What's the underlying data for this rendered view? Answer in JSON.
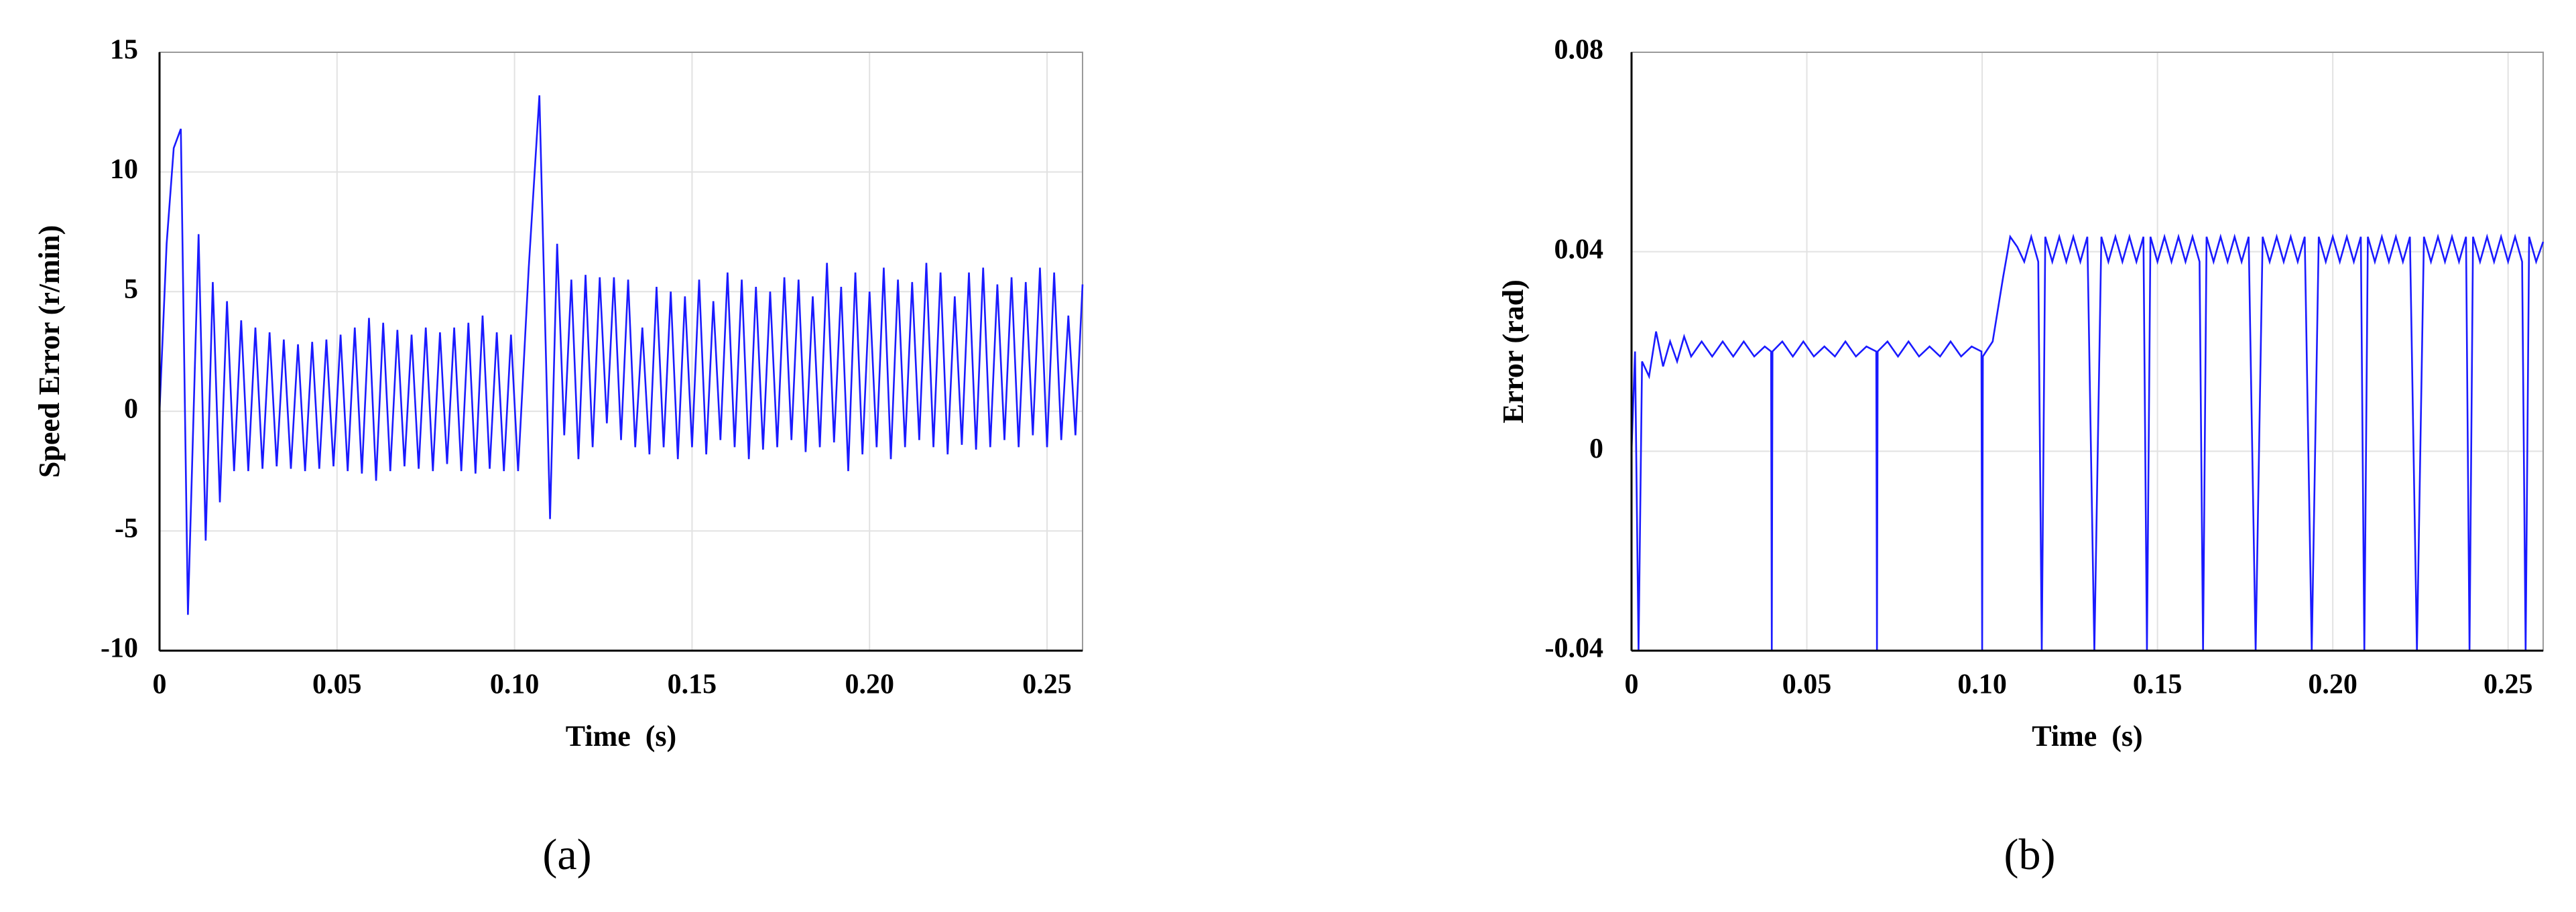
{
  "chart_data": [
    {
      "type": "line",
      "x_label": "Time  (s)",
      "y_label": "Speed Error (r/min)",
      "caption": "(a)",
      "xlim": [
        0,
        0.26
      ],
      "ylim": [
        -10,
        15
      ],
      "xticks": [
        0,
        0.05,
        {
          "value": 0.1,
          "label": "0.10"
        },
        0.15,
        {
          "value": 0.2,
          "label": "0.20"
        },
        0.25
      ],
      "yticks": [
        -10,
        -5,
        0,
        5,
        10,
        15
      ],
      "grid": true,
      "series": [
        {
          "name": "Speed Error",
          "color": "#1a1aff",
          "x": [
            0,
            0.002,
            0.004,
            0.006,
            0.008,
            0.011,
            0.013,
            0.015,
            0.017,
            0.019,
            0.021,
            0.023,
            0.025,
            0.027,
            0.029,
            0.031,
            0.033,
            0.035,
            0.037,
            0.039,
            0.041,
            0.043,
            0.045,
            0.047,
            0.049,
            0.051,
            0.053,
            0.055,
            0.057,
            0.059,
            0.061,
            0.063,
            0.065,
            0.067,
            0.069,
            0.071,
            0.073,
            0.075,
            0.077,
            0.079,
            0.081,
            0.083,
            0.085,
            0.087,
            0.089,
            0.091,
            0.093,
            0.095,
            0.097,
            0.099,
            0.101,
            0.104,
            0.107,
            0.11,
            0.112,
            0.114,
            0.116,
            0.118,
            0.12,
            0.122,
            0.124,
            0.126,
            0.128,
            0.13,
            0.132,
            0.134,
            0.136,
            0.138,
            0.14,
            0.142,
            0.144,
            0.146,
            0.148,
            0.15,
            0.152,
            0.154,
            0.156,
            0.158,
            0.16,
            0.162,
            0.164,
            0.166,
            0.168,
            0.17,
            0.172,
            0.174,
            0.176,
            0.178,
            0.18,
            0.182,
            0.184,
            0.186,
            0.188,
            0.19,
            0.192,
            0.194,
            0.196,
            0.198,
            0.2,
            0.202,
            0.204,
            0.206,
            0.208,
            0.21,
            0.212,
            0.214,
            0.216,
            0.218,
            0.22,
            0.222,
            0.224,
            0.226,
            0.228,
            0.23,
            0.232,
            0.234,
            0.236,
            0.238,
            0.24,
            0.242,
            0.244,
            0.246,
            0.248,
            0.25,
            0.252,
            0.254,
            0.256,
            0.258,
            0.26
          ],
          "values": [
            0,
            7,
            11,
            11.8,
            -8.5,
            7.4,
            -5.4,
            5.4,
            -3.8,
            4.6,
            -2.5,
            3.8,
            -2.5,
            3.5,
            -2.4,
            3.3,
            -2.3,
            3.0,
            -2.4,
            2.8,
            -2.5,
            2.9,
            -2.4,
            3.0,
            -2.3,
            3.2,
            -2.5,
            3.5,
            -2.6,
            3.9,
            -2.9,
            3.7,
            -2.5,
            3.4,
            -2.3,
            3.2,
            -2.4,
            3.5,
            -2.5,
            3.3,
            -2.2,
            3.5,
            -2.5,
            3.7,
            -2.6,
            4.0,
            -2.4,
            3.3,
            -2.5,
            3.2,
            -2.5,
            6,
            13.2,
            -4.5,
            7,
            -1,
            5.5,
            -2,
            5.7,
            -1.5,
            5.6,
            -0.5,
            5.6,
            -1.2,
            5.5,
            -1.5,
            3.5,
            -1.8,
            5.2,
            -1.5,
            5.0,
            -2,
            4.8,
            -1.5,
            5.5,
            -1.8,
            4.6,
            -1.2,
            5.8,
            -1.5,
            5.5,
            -2,
            5.2,
            -1.6,
            5.0,
            -1.5,
            5.6,
            -1.2,
            5.5,
            -1.7,
            4.8,
            -1.5,
            6.2,
            -1.3,
            5.2,
            -2.5,
            5.8,
            -1.8,
            5.0,
            -1.5,
            6.0,
            -2.0,
            5.5,
            -1.5,
            5.4,
            -1.2,
            6.2,
            -1.5,
            5.8,
            -1.8,
            4.8,
            -1.4,
            5.8,
            -1.6,
            6.0,
            -1.5,
            5.3,
            -1.2,
            5.6,
            -1.5,
            5.4,
            -1.0,
            6.0,
            -1.5,
            5.8,
            -1.2,
            4.0,
            -1.0,
            5.3
          ]
        }
      ]
    },
    {
      "type": "line",
      "x_label": "Time  (s)",
      "y_label": "Error (rad)",
      "caption": "(b)",
      "xlim": [
        0,
        0.26
      ],
      "ylim": [
        -0.04,
        0.08
      ],
      "xticks": [
        0,
        0.05,
        {
          "value": 0.1,
          "label": "0.10"
        },
        0.15,
        {
          "value": 0.2,
          "label": "0.20"
        },
        0.25
      ],
      "yticks": [
        -0.04,
        0,
        0.04,
        0.08
      ],
      "grid": true,
      "series": [
        {
          "name": "Error",
          "color": "#1a1aff",
          "x": [
            0,
            0.001,
            0.002,
            0.003,
            0.005,
            0.007,
            0.009,
            0.011,
            0.013,
            0.015,
            0.017,
            0.02,
            0.023,
            0.026,
            0.029,
            0.032,
            0.035,
            0.038,
            0.0398,
            0.04,
            0.0402,
            0.043,
            0.046,
            0.049,
            0.052,
            0.055,
            0.058,
            0.061,
            0.064,
            0.067,
            0.0698,
            0.07,
            0.0702,
            0.073,
            0.076,
            0.079,
            0.082,
            0.085,
            0.088,
            0.091,
            0.094,
            0.097,
            0.0998,
            0.1,
            0.1002,
            0.103,
            0.106,
            0.108,
            0.11,
            0.112,
            0.114,
            0.116,
            0.117,
            0.118,
            0.12,
            0.122,
            0.124,
            0.126,
            0.128,
            0.13,
            0.132,
            0.134,
            0.136,
            0.138,
            0.14,
            0.142,
            0.144,
            0.146,
            0.147,
            0.148,
            0.15,
            0.152,
            0.154,
            0.156,
            0.158,
            0.16,
            0.162,
            0.163,
            0.164,
            0.166,
            0.168,
            0.17,
            0.172,
            0.174,
            0.176,
            0.178,
            0.18,
            0.182,
            0.184,
            0.186,
            0.188,
            0.19,
            0.192,
            0.194,
            0.196,
            0.198,
            0.2,
            0.202,
            0.204,
            0.206,
            0.208,
            0.209,
            0.21,
            0.212,
            0.214,
            0.216,
            0.218,
            0.22,
            0.222,
            0.224,
            0.226,
            0.228,
            0.23,
            0.232,
            0.234,
            0.236,
            0.238,
            0.239,
            0.24,
            0.242,
            0.244,
            0.246,
            0.248,
            0.25,
            0.252,
            0.254,
            0.255,
            0.256,
            0.258,
            0.26
          ],
          "values": [
            0,
            0.02,
            -0.04,
            0.018,
            0.015,
            0.024,
            0.017,
            0.022,
            0.018,
            0.023,
            0.019,
            0.022,
            0.019,
            0.022,
            0.019,
            0.022,
            0.019,
            0.021,
            0.02,
            -0.04,
            0.02,
            0.022,
            0.019,
            0.022,
            0.019,
            0.021,
            0.019,
            0.022,
            0.019,
            0.021,
            0.02,
            -0.04,
            0.02,
            0.022,
            0.019,
            0.022,
            0.019,
            0.021,
            0.019,
            0.022,
            0.019,
            0.021,
            0.02,
            -0.04,
            0.019,
            0.022,
            0.035,
            0.043,
            0.041,
            0.038,
            0.043,
            0.038,
            -0.04,
            0.043,
            0.038,
            0.043,
            0.038,
            0.043,
            0.038,
            0.043,
            -0.04,
            0.043,
            0.038,
            0.043,
            0.038,
            0.043,
            0.038,
            0.043,
            -0.04,
            0.043,
            0.038,
            0.043,
            0.038,
            0.043,
            0.038,
            0.043,
            0.038,
            -0.04,
            0.043,
            0.038,
            0.043,
            0.038,
            0.043,
            0.038,
            0.043,
            -0.04,
            0.043,
            0.038,
            0.043,
            0.038,
            0.043,
            0.038,
            0.043,
            -0.04,
            0.043,
            0.038,
            0.043,
            0.038,
            0.043,
            0.038,
            0.043,
            -0.04,
            0.043,
            0.038,
            0.043,
            0.038,
            0.043,
            0.038,
            0.043,
            -0.04,
            0.043,
            0.038,
            0.043,
            0.038,
            0.043,
            0.038,
            0.043,
            -0.04,
            0.043,
            0.038,
            0.043,
            0.038,
            0.043,
            0.038,
            0.043,
            0.038,
            -0.04,
            0.043,
            0.038,
            0.042
          ]
        }
      ]
    }
  ]
}
